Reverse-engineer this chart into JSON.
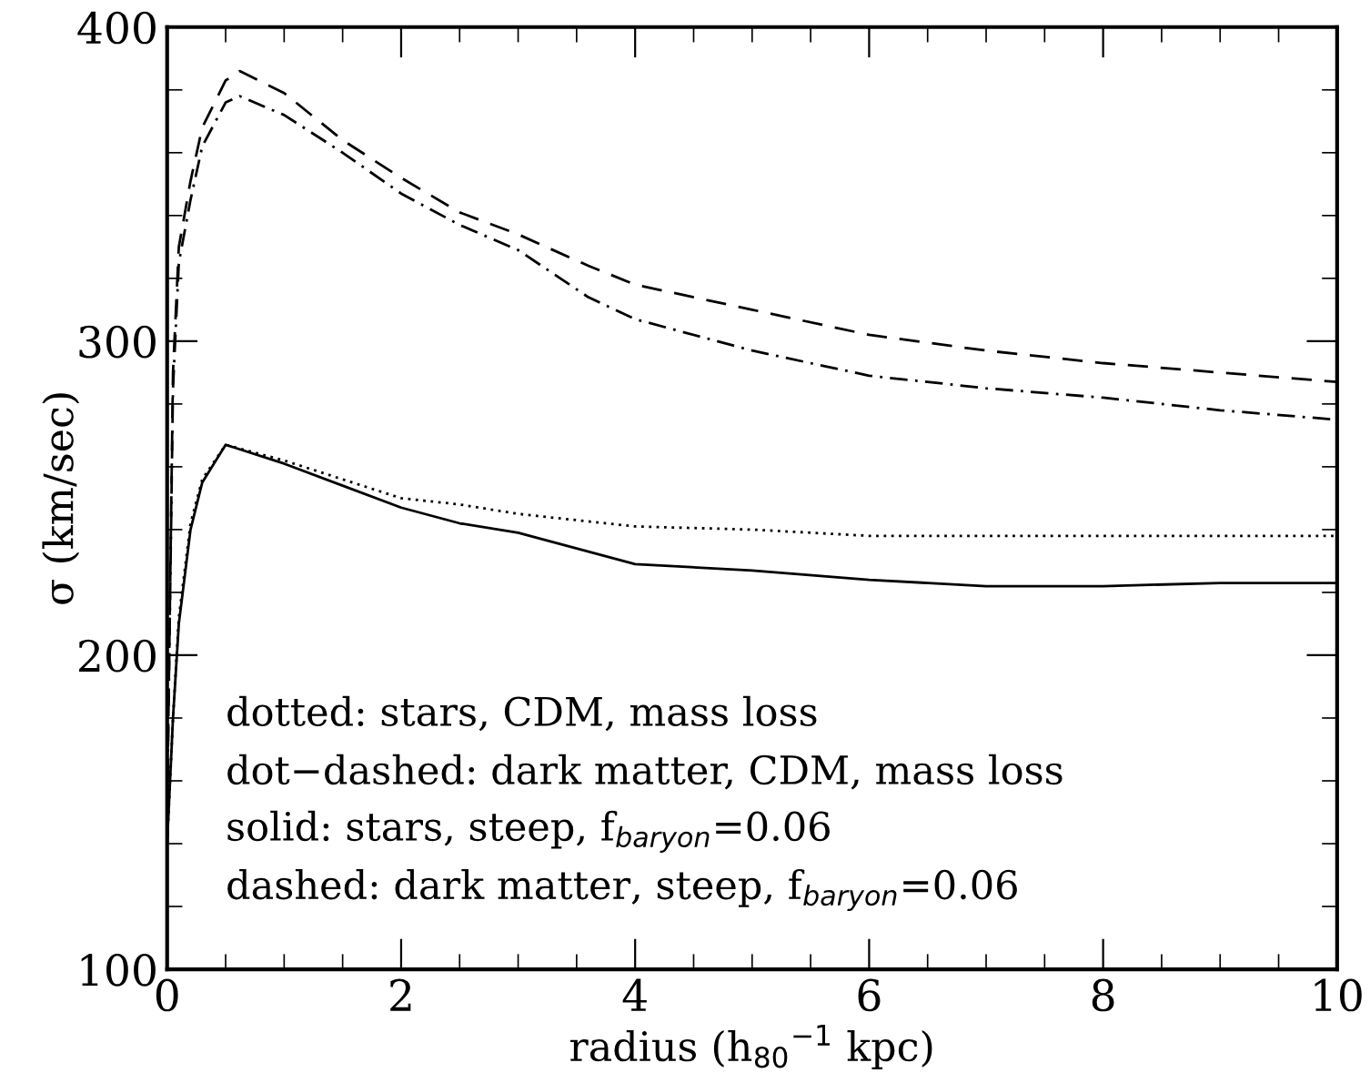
{
  "chart_data": {
    "type": "line",
    "xlabel": "radius (h$_{80}$$^{−1}$ kpc)",
    "ylabel": "σ (km/sec)",
    "xlim": [
      0,
      10
    ],
    "ylim": [
      100,
      400
    ],
    "xticks": [
      0,
      2,
      4,
      6,
      8,
      10
    ],
    "yticks": [
      100,
      200,
      300,
      400
    ],
    "grid": false,
    "legend": false,
    "marker": "none",
    "series": [
      {
        "color": "#000000",
        "line_style": "dashed",
        "x": [
          0,
          0.05,
          0.1,
          0.2,
          0.3,
          0.5,
          0.62,
          1,
          1.5,
          2,
          2.5,
          3,
          3.6,
          4,
          5,
          6,
          7,
          8,
          9,
          10
        ],
        "values": [
          150,
          290,
          330,
          351,
          368,
          383,
          386,
          379,
          364,
          352,
          341,
          334,
          324,
          318,
          310,
          302,
          297,
          293,
          290,
          287
        ]
      },
      {
        "color": "#000000",
        "line_style": "dashdot",
        "x": [
          0,
          0.05,
          0.1,
          0.2,
          0.3,
          0.5,
          0.62,
          1,
          1.5,
          2,
          2.5,
          3,
          3.6,
          4,
          5,
          6,
          7,
          8,
          9,
          10
        ],
        "values": [
          150,
          285,
          325,
          345,
          362,
          376,
          378,
          372,
          360,
          347,
          337,
          329,
          314,
          307,
          297,
          289,
          285,
          282,
          278,
          275
        ]
      },
      {
        "color": "#000000",
        "line_style": "dotted",
        "x": [
          0,
          0.05,
          0.1,
          0.2,
          0.3,
          0.5,
          1,
          1.5,
          2,
          2.5,
          3,
          3.5,
          4,
          5,
          6,
          7,
          8,
          9,
          10
        ],
        "values": [
          140,
          180,
          212,
          242,
          256,
          267,
          262,
          256,
          250,
          248,
          245,
          243,
          241,
          240,
          238,
          238,
          238,
          238,
          238
        ]
      },
      {
        "color": "#000000",
        "line_style": "solid",
        "x": [
          0,
          0.05,
          0.1,
          0.2,
          0.3,
          0.5,
          1,
          1.5,
          2,
          2.5,
          3,
          3.5,
          4,
          5,
          6,
          7,
          8,
          9,
          10
        ],
        "values": [
          140,
          180,
          210,
          240,
          255,
          267,
          261,
          254,
          247,
          242,
          239,
          234,
          229,
          227,
          224,
          222,
          222,
          223,
          223
        ]
      }
    ],
    "annotations": [
      "dotted: stars, CDM, mass loss",
      "dot−dashed: dark matter, CDM, mass loss",
      "solid: stars, steep, f$_{baryon}$=0.06",
      "dashed: dark matter, steep, f$_{baryon}$=0.06"
    ]
  }
}
